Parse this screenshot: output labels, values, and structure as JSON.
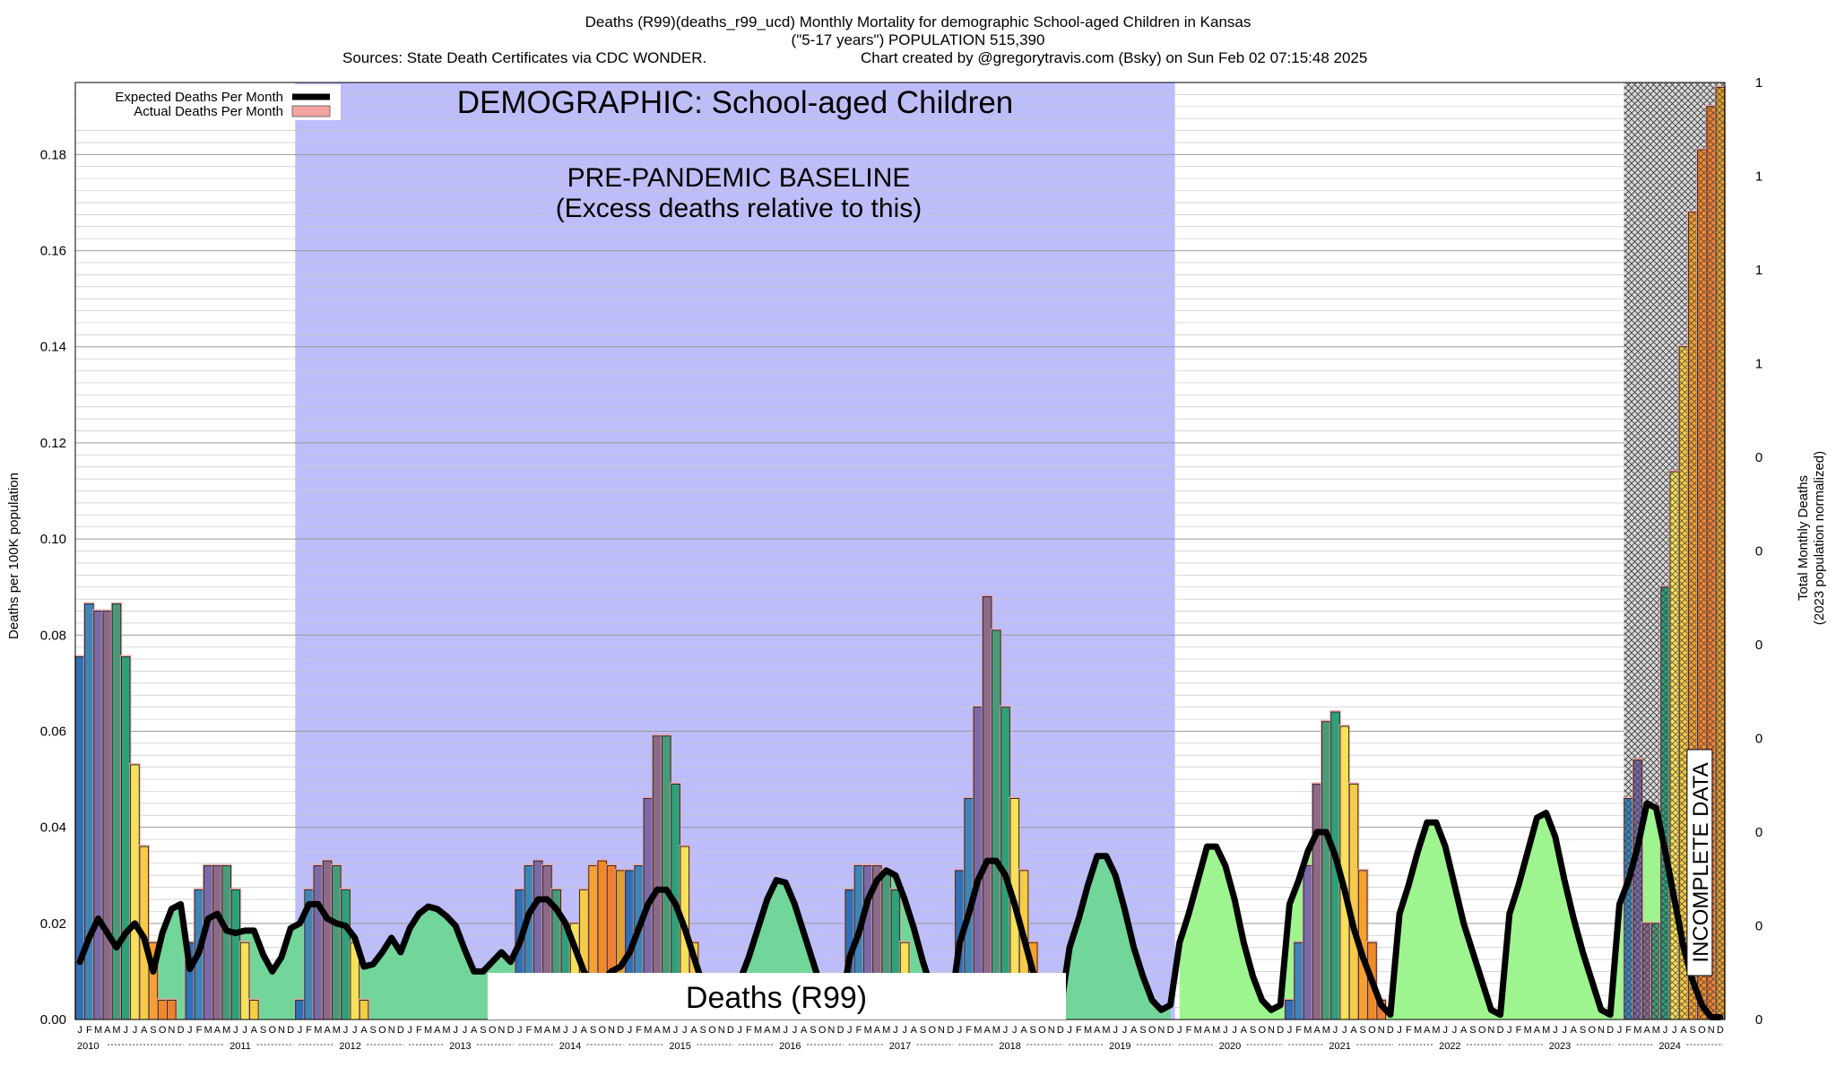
{
  "chart_data": {
    "type": "bar",
    "title": "Deaths (R99)(deaths_r99_ucd) Monthly Mortality for demographic School-aged Children in Kansas",
    "subtitle": "(\"5-17 years\") POPULATION 515,390",
    "sources": "Sources: State Death Certificates via CDC WONDER.",
    "credit": "Chart created by @gregorytravis.com (Bsky) on Sun Feb 02 07:15:48 2025",
    "ylabel": "Deaths per 100K population",
    "y2label_line1": "Total Monthly Deaths",
    "y2label_line2": "(2023 population normalized)",
    "ylim": [
      0,
      0.195
    ],
    "yticks": [
      "0.00",
      "0.02",
      "0.04",
      "0.06",
      "0.08",
      "0.10",
      "0.12",
      "0.14",
      "0.16",
      "0.18"
    ],
    "y2ticks": [
      "0",
      "0",
      "0",
      "0",
      "0",
      "0",
      "0",
      "1",
      "1",
      "1",
      "1",
      "1"
    ],
    "years": [
      "2010",
      "2011",
      "2012",
      "2013",
      "2014",
      "2015",
      "2016",
      "2017",
      "2018",
      "2019",
      "2020",
      "2021",
      "2022",
      "2023",
      "2024"
    ],
    "month_letters": [
      "J",
      "F",
      "M",
      "A",
      "M",
      "J",
      "J",
      "A",
      "S",
      "O",
      "N",
      "D"
    ],
    "legend": {
      "position": "top-left",
      "expected": "Expected Deaths Per Month",
      "actual": "Actual Deaths Per Month"
    },
    "annotations": {
      "demographic": "DEMOGRAPHIC: School-aged Children",
      "baseline_line1": "PRE-PANDEMIC BASELINE",
      "baseline_line2": "(Excess deaths relative to this)",
      "cause": "Deaths (R99)",
      "incomplete": "INCOMPLETE DATA"
    },
    "baseline_span": [
      "2012-01",
      "2019-12"
    ],
    "incomplete_span": [
      "2024-02",
      "2024-12"
    ],
    "series": [
      {
        "name": "Actual Deaths Per Month",
        "values": [
          0.0755,
          0.0865,
          0.085,
          0.085,
          0.0865,
          0.0755,
          0.053,
          0.036,
          0.016,
          0.004,
          0.004,
          0,
          0.016,
          0.027,
          0.032,
          0.032,
          0.032,
          0.027,
          0.016,
          0.004,
          0,
          0,
          0,
          0,
          0.004,
          0.027,
          0.032,
          0.033,
          0.032,
          0.027,
          0.016,
          0.004,
          0,
          0,
          0,
          0,
          0,
          0,
          0,
          0,
          0,
          0,
          0,
          0,
          0,
          0,
          0,
          0,
          0.027,
          0.032,
          0.033,
          0.032,
          0.027,
          0.02,
          0.02,
          0.027,
          0.032,
          0.033,
          0.032,
          0.031,
          0.031,
          0.032,
          0.046,
          0.059,
          0.059,
          0.049,
          0.036,
          0.016,
          0,
          0,
          0,
          0,
          0,
          0,
          0,
          0,
          0,
          0,
          0,
          0,
          0,
          0,
          0,
          0,
          0.027,
          0.032,
          0.032,
          0.032,
          0.031,
          0.027,
          0.016,
          0,
          0,
          0,
          0,
          0,
          0.031,
          0.046,
          0.065,
          0.088,
          0.081,
          0.065,
          0.046,
          0.031,
          0.016,
          0,
          0,
          0,
          0,
          0,
          0,
          0,
          0,
          0,
          0,
          0,
          0,
          0,
          0,
          0,
          0,
          0,
          0,
          0,
          0,
          0,
          0,
          0,
          0,
          0,
          0,
          0,
          0.004,
          0.016,
          0.032,
          0.049,
          0.062,
          0.064,
          0.061,
          0.049,
          0.031,
          0.016,
          0.004,
          0,
          0,
          0,
          0,
          0,
          0,
          0,
          0,
          0,
          0,
          0,
          0,
          0,
          0,
          0,
          0,
          0,
          0,
          0,
          0,
          0,
          0,
          0,
          0,
          0,
          0,
          0.046,
          0.054,
          0.02,
          0.02,
          0.09,
          0.114,
          0.14,
          0.168,
          0.181,
          0.19,
          0.194
        ]
      },
      {
        "name": "Expected Deaths Per Month",
        "values": [
          0.012,
          0.017,
          0.021,
          0.018,
          0.015,
          0.018,
          0.02,
          0.017,
          0.01,
          0.018,
          0.023,
          0.024,
          0.0105,
          0.014,
          0.021,
          0.022,
          0.0185,
          0.018,
          0.0185,
          0.0185,
          0.0135,
          0.01,
          0.013,
          0.019,
          0.02,
          0.024,
          0.024,
          0.021,
          0.02,
          0.0195,
          0.017,
          0.011,
          0.0115,
          0.014,
          0.017,
          0.014,
          0.019,
          0.022,
          0.0235,
          0.023,
          0.0215,
          0.0195,
          0.0145,
          0.01,
          0.01,
          0.012,
          0.014,
          0.012,
          0.016,
          0.022,
          0.025,
          0.025,
          0.023,
          0.02,
          0.015,
          0.01,
          0.007,
          0.008,
          0.01,
          0.011,
          0.014,
          0.019,
          0.024,
          0.027,
          0.027,
          0.024,
          0.019,
          0.013,
          0.007,
          0.0035,
          0.002,
          0.002,
          0.008,
          0.013,
          0.019,
          0.025,
          0.029,
          0.0285,
          0.024,
          0.018,
          0.012,
          0.006,
          0.002,
          0.002,
          0.013,
          0.018,
          0.025,
          0.029,
          0.031,
          0.03,
          0.025,
          0.019,
          0.012,
          0.006,
          0.002,
          0.002,
          0.016,
          0.022,
          0.029,
          0.033,
          0.033,
          0.03,
          0.024,
          0.017,
          0.01,
          0.004,
          0.002,
          0.002,
          0.015,
          0.021,
          0.028,
          0.034,
          0.034,
          0.03,
          0.023,
          0.015,
          0.009,
          0.004,
          0.002,
          0.003,
          0.016,
          0.022,
          0.029,
          0.036,
          0.036,
          0.032,
          0.025,
          0.016,
          0.009,
          0.004,
          0.002,
          0.003,
          0.024,
          0.029,
          0.035,
          0.039,
          0.039,
          0.034,
          0.027,
          0.019,
          0.013,
          0.008,
          0.003,
          0.001,
          0.022,
          0.028,
          0.035,
          0.041,
          0.041,
          0.036,
          0.028,
          0.02,
          0.014,
          0.008,
          0.002,
          0.001,
          0.022,
          0.028,
          0.035,
          0.042,
          0.043,
          0.038,
          0.029,
          0.021,
          0.014,
          0.008,
          0.002,
          0.001,
          0.024,
          0.029,
          0.036,
          0.045,
          0.044,
          0.035,
          0.025,
          0.015,
          0.008,
          0.003,
          0.0005,
          0.0005
        ]
      }
    ],
    "bar_colors": [
      "#2f6fb5",
      "#3f85b8",
      "#7b6aa8",
      "#8b6a8a",
      "#4a9a7a",
      "#2ea07a",
      "#f5e15a",
      "#f4cc45",
      "#f5a030",
      "#f08a28",
      "#f08030",
      "#e0a030"
    ],
    "fill_colors": {
      "prepandemic_fill": "#72d69a",
      "postpandemic_fill": "#9ef58f",
      "baseline_band": "#bdbdfb",
      "actual_band": "#f4a3a3",
      "expected_line": "#000000"
    }
  }
}
